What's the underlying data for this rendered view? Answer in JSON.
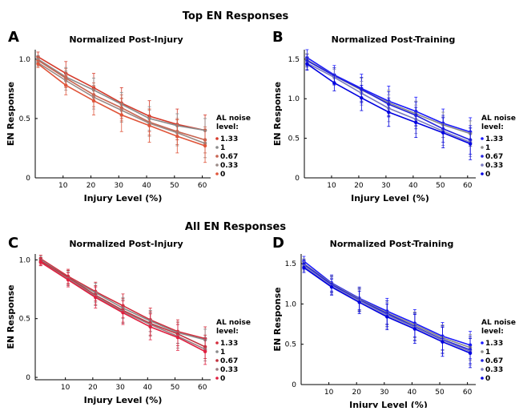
{
  "section_titles": [
    "Top EN Responses",
    "All EN Responses"
  ],
  "chart_data": [
    {
      "panel": "A",
      "type": "line",
      "title": "Normalized Post-Injury",
      "xlabel": "Injury Level (%)",
      "ylabel": "EN Response",
      "x": [
        1,
        11,
        21,
        31,
        41,
        51,
        61
      ],
      "xticks": [
        10,
        20,
        30,
        40,
        50,
        60
      ],
      "xlim": [
        0,
        63
      ],
      "yticks": [
        0,
        0.5,
        1.0
      ],
      "ytick_labels": [
        "0",
        "0.5",
        "1.0"
      ],
      "ylim": [
        0,
        1.08
      ],
      "legend_title": "AL noise level:",
      "legend_position": "right",
      "series": [
        {
          "name": "1.33",
          "color": "#d63a2a",
          "values": [
            1.02,
            0.88,
            0.76,
            0.63,
            0.52,
            0.45,
            0.4
          ],
          "err": [
            0.04,
            0.1,
            0.12,
            0.13,
            0.13,
            0.13,
            0.13
          ]
        },
        {
          "name": "1",
          "color": "#8a8a8a",
          "values": [
            1.0,
            0.85,
            0.74,
            0.62,
            0.5,
            0.44,
            0.4
          ],
          "err": [
            0.03,
            0.08,
            0.1,
            0.1,
            0.1,
            0.1,
            0.1
          ]
        },
        {
          "name": "0.67",
          "color": "#c86450",
          "values": [
            0.99,
            0.84,
            0.7,
            0.59,
            0.47,
            0.39,
            0.32
          ],
          "err": [
            0.03,
            0.08,
            0.1,
            0.11,
            0.11,
            0.11,
            0.11
          ]
        },
        {
          "name": "0.33",
          "color": "#9a8a86",
          "values": [
            0.97,
            0.82,
            0.68,
            0.57,
            0.46,
            0.38,
            0.29
          ],
          "err": [
            0.03,
            0.08,
            0.1,
            0.1,
            0.11,
            0.11,
            0.12
          ]
        },
        {
          "name": "0",
          "color": "#e0553a",
          "values": [
            0.96,
            0.78,
            0.65,
            0.53,
            0.44,
            0.35,
            0.27
          ],
          "err": [
            0.03,
            0.08,
            0.12,
            0.14,
            0.14,
            0.14,
            0.14
          ]
        }
      ]
    },
    {
      "panel": "B",
      "type": "line",
      "title": "Normalized Post-Training",
      "xlabel": "Injury Level (%)",
      "ylabel": "EN Response",
      "x": [
        1,
        11,
        21,
        31,
        41,
        51,
        61
      ],
      "xticks": [
        10,
        20,
        30,
        40,
        50,
        60
      ],
      "xlim": [
        0,
        63
      ],
      "yticks": [
        0,
        0.5,
        1.0,
        1.5
      ],
      "ytick_labels": [
        "0",
        "0.5",
        "1.0",
        "1.5"
      ],
      "ylim": [
        0,
        1.62
      ],
      "legend_title": "AL noise level:",
      "legend_position": "right",
      "series": [
        {
          "name": "1.33",
          "color": "#1a1aff",
          "values": [
            1.52,
            1.3,
            1.13,
            0.97,
            0.84,
            0.69,
            0.58
          ],
          "err": [
            0.1,
            0.12,
            0.18,
            0.19,
            0.18,
            0.18,
            0.18
          ]
        },
        {
          "name": "1",
          "color": "#8a8a8a",
          "values": [
            1.49,
            1.29,
            1.11,
            0.95,
            0.81,
            0.67,
            0.56
          ],
          "err": [
            0.08,
            0.1,
            0.15,
            0.16,
            0.16,
            0.16,
            0.16
          ]
        },
        {
          "name": "0.67",
          "color": "#2222dd",
          "values": [
            1.48,
            1.29,
            1.12,
            0.93,
            0.79,
            0.62,
            0.48
          ],
          "err": [
            0.08,
            0.1,
            0.15,
            0.16,
            0.17,
            0.17,
            0.18
          ]
        },
        {
          "name": "0.33",
          "color": "#7a7ac0",
          "values": [
            1.45,
            1.27,
            1.07,
            0.88,
            0.74,
            0.59,
            0.45
          ],
          "err": [
            0.08,
            0.1,
            0.15,
            0.17,
            0.18,
            0.18,
            0.18
          ]
        },
        {
          "name": "0",
          "color": "#0000e0",
          "values": [
            1.44,
            1.2,
            1.01,
            0.83,
            0.7,
            0.57,
            0.43
          ],
          "err": [
            0.08,
            0.1,
            0.16,
            0.18,
            0.19,
            0.19,
            0.2
          ]
        }
      ]
    },
    {
      "panel": "C",
      "type": "line",
      "title": "Normalized Post-Injury",
      "xlabel": "Injury Level (%)",
      "ylabel": "EN Response",
      "x": [
        1,
        11,
        21,
        31,
        41,
        51,
        61
      ],
      "xticks": [
        10,
        20,
        30,
        40,
        50,
        60
      ],
      "xlim": [
        -1,
        63
      ],
      "yticks": [
        0,
        0.5,
        1.0
      ],
      "ytick_labels": [
        "0",
        "0.5",
        "1.0"
      ],
      "ylim": [
        -0.02,
        1.05
      ],
      "legend_title": "AL noise level:",
      "legend_position": "right",
      "series": [
        {
          "name": "1.33",
          "color": "#d42a3a",
          "values": [
            1.01,
            0.86,
            0.73,
            0.61,
            0.49,
            0.39,
            0.33
          ],
          "err": [
            0.03,
            0.06,
            0.08,
            0.1,
            0.1,
            0.1,
            0.1
          ]
        },
        {
          "name": "1",
          "color": "#8a8a8a",
          "values": [
            1.0,
            0.85,
            0.72,
            0.59,
            0.48,
            0.38,
            0.32
          ],
          "err": [
            0.03,
            0.06,
            0.08,
            0.09,
            0.09,
            0.09,
            0.09
          ]
        },
        {
          "name": "0.67",
          "color": "#c0303c",
          "values": [
            0.99,
            0.85,
            0.7,
            0.57,
            0.46,
            0.37,
            0.26
          ],
          "err": [
            0.03,
            0.06,
            0.08,
            0.1,
            0.1,
            0.1,
            0.1
          ]
        },
        {
          "name": "0.33",
          "color": "#9a7a80",
          "values": [
            0.98,
            0.84,
            0.69,
            0.56,
            0.45,
            0.35,
            0.24
          ],
          "err": [
            0.03,
            0.06,
            0.08,
            0.1,
            0.1,
            0.1,
            0.1
          ]
        },
        {
          "name": "0",
          "color": "#e02040",
          "values": [
            0.98,
            0.83,
            0.68,
            0.55,
            0.43,
            0.34,
            0.22
          ],
          "err": [
            0.03,
            0.06,
            0.09,
            0.1,
            0.11,
            0.11,
            0.11
          ]
        }
      ]
    },
    {
      "panel": "D",
      "type": "line",
      "title": "Normalized Post-Training",
      "xlabel": "Injury Level (%)",
      "ylabel": "EN Response",
      "x": [
        1,
        11,
        21,
        31,
        41,
        51,
        61
      ],
      "xticks": [
        10,
        20,
        30,
        40,
        50,
        60
      ],
      "xlim": [
        0,
        63
      ],
      "yticks": [
        0,
        0.5,
        1.0,
        1.5
      ],
      "ytick_labels": [
        "0",
        "0.5",
        "1.0",
        "1.5"
      ],
      "ylim": [
        0,
        1.62
      ],
      "legend_title": "AL noise level:",
      "legend_position": "right",
      "series": [
        {
          "name": "1.33",
          "color": "#1a1aff",
          "values": [
            1.53,
            1.26,
            1.07,
            0.91,
            0.76,
            0.6,
            0.49
          ],
          "err": [
            0.06,
            0.1,
            0.14,
            0.16,
            0.17,
            0.17,
            0.17
          ]
        },
        {
          "name": "1",
          "color": "#8a8a8a",
          "values": [
            1.5,
            1.25,
            1.06,
            0.89,
            0.74,
            0.58,
            0.46
          ],
          "err": [
            0.06,
            0.1,
            0.14,
            0.15,
            0.16,
            0.16,
            0.16
          ]
        },
        {
          "name": "0.67",
          "color": "#2222dd",
          "values": [
            1.49,
            1.24,
            1.05,
            0.88,
            0.72,
            0.56,
            0.43
          ],
          "err": [
            0.06,
            0.1,
            0.14,
            0.16,
            0.17,
            0.17,
            0.17
          ]
        },
        {
          "name": "0.33",
          "color": "#7a7ac0",
          "values": [
            1.47,
            1.22,
            1.04,
            0.86,
            0.71,
            0.55,
            0.41
          ],
          "err": [
            0.06,
            0.1,
            0.14,
            0.16,
            0.17,
            0.17,
            0.17
          ]
        },
        {
          "name": "0",
          "color": "#0000e0",
          "values": [
            1.45,
            1.21,
            1.02,
            0.84,
            0.69,
            0.53,
            0.39
          ],
          "err": [
            0.06,
            0.1,
            0.14,
            0.16,
            0.18,
            0.18,
            0.18
          ]
        }
      ]
    }
  ]
}
